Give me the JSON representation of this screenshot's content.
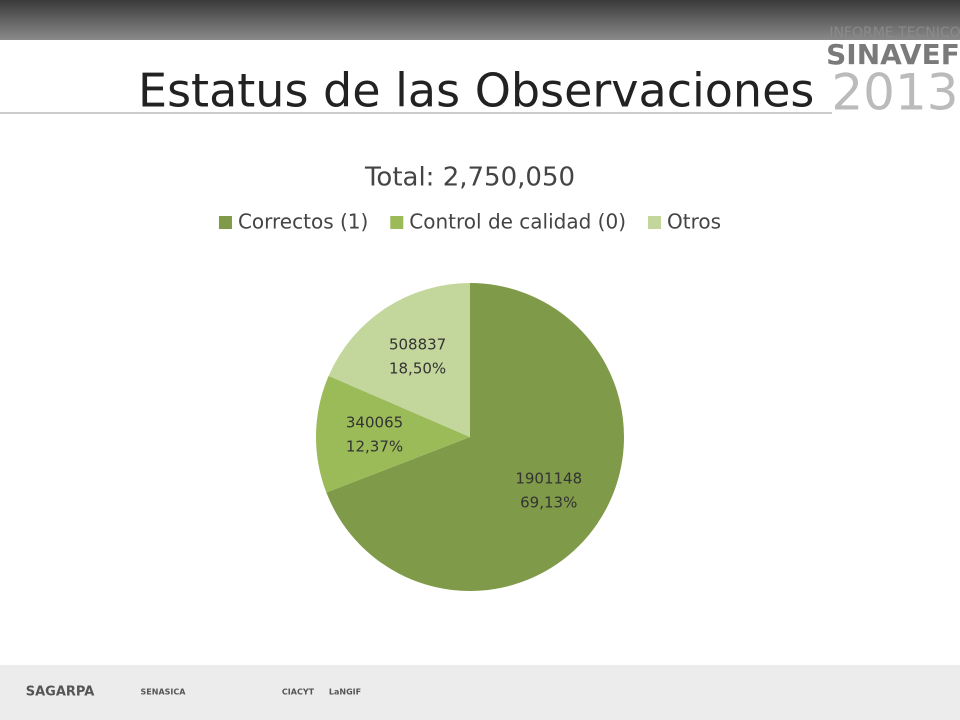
{
  "header": {
    "title": "Estatus de las Observaciones",
    "logo_caption": "INFORME TECNICO",
    "logo_name": "SINAVEF",
    "logo_year": "2013"
  },
  "chart_data": {
    "type": "pie",
    "title": "Total: 2,750,050",
    "categories": [
      "Correctos (1)",
      "Control de calidad (0)",
      "Otros"
    ],
    "values": [
      1901148,
      340065,
      508837
    ],
    "percent_labels": [
      "69,13%",
      "12,37%",
      "18,50%"
    ],
    "colors": [
      "#7f9a48",
      "#9bbb59",
      "#c3d69b"
    ],
    "legend": "top"
  },
  "footer": {
    "logos": [
      "SAGARPA",
      "SENASICA",
      "CIACYT",
      "LaNGIF"
    ]
  }
}
